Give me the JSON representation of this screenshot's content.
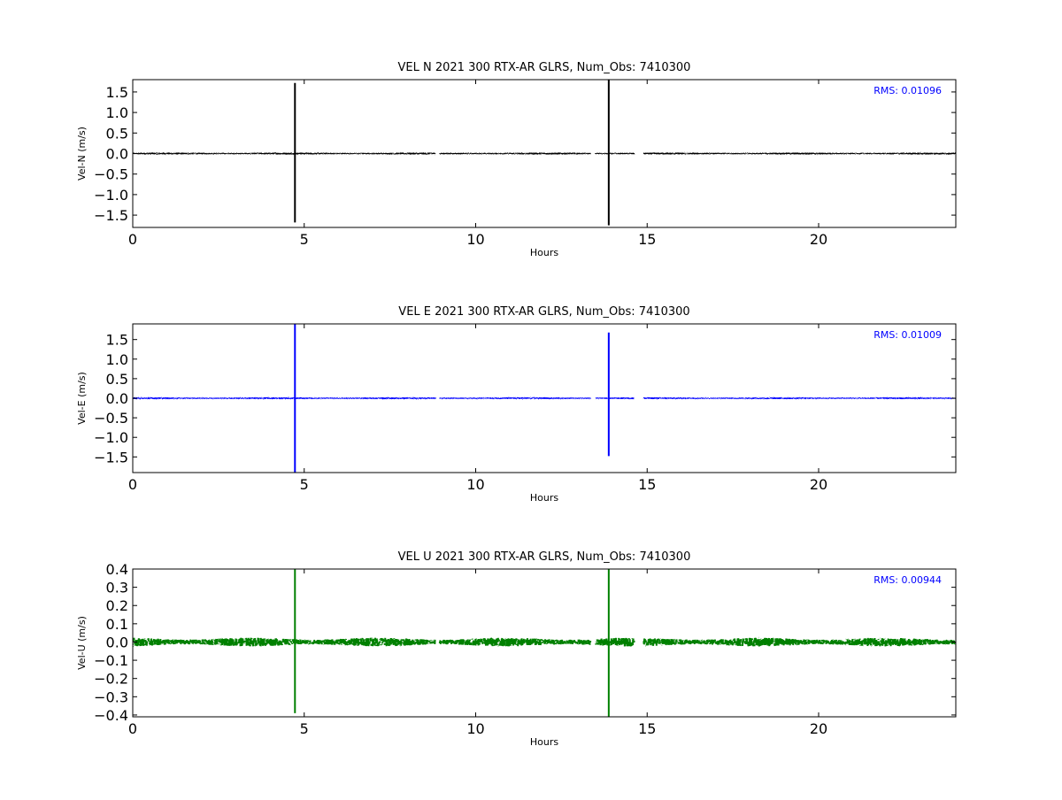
{
  "chart_data": [
    {
      "type": "line",
      "title": "VEL N 2021 300 RTX-AR  GLRS, Num_Obs: 7410300",
      "xlabel": "Hours",
      "ylabel": "Vel-N (m/s)",
      "xlim": [
        0,
        24
      ],
      "ylim": [
        -1.8,
        1.8
      ],
      "xticks": [
        0,
        5,
        10,
        15,
        20
      ],
      "yticks": [
        -1.5,
        -1.0,
        -0.5,
        0.0,
        0.5,
        1.0,
        1.5
      ],
      "ytick_labels": [
        "−1.5",
        "−1.0",
        "−0.5",
        "0.0",
        "0.5",
        "1.0",
        "1.5"
      ],
      "color": "#000000",
      "rms_label": "RMS:  0.01096",
      "series": [
        {
          "noise_amplitude": 0.02,
          "segments": [
            [
              0.0,
              8.82
            ],
            [
              8.95,
              13.35
            ],
            [
              13.5,
              14.62
            ],
            [
              14.9,
              24.0
            ]
          ],
          "spikes": [
            [
              4.73,
              -1.68,
              1.72
            ],
            [
              13.88,
              -1.75,
              1.8
            ]
          ]
        }
      ]
    },
    {
      "type": "line",
      "title": "VEL E 2021 300 RTX-AR  GLRS, Num_Obs: 7410300",
      "xlabel": "Hours",
      "ylabel": "Vel-E (m/s)",
      "xlim": [
        0,
        24
      ],
      "ylim": [
        -1.9,
        1.9
      ],
      "xticks": [
        0,
        5,
        10,
        15,
        20
      ],
      "yticks": [
        -1.5,
        -1.0,
        -0.5,
        0.0,
        0.5,
        1.0,
        1.5
      ],
      "ytick_labels": [
        "−1.5",
        "−1.0",
        "−0.5",
        "0.0",
        "0.5",
        "1.0",
        "1.5"
      ],
      "color": "#0000ff",
      "rms_label": "RMS:  0.01009",
      "series": [
        {
          "noise_amplitude": 0.02,
          "segments": [
            [
              0.0,
              8.82
            ],
            [
              8.95,
              13.35
            ],
            [
              13.5,
              14.62
            ],
            [
              14.9,
              24.0
            ]
          ],
          "spikes": [
            [
              4.73,
              -1.9,
              1.9
            ],
            [
              13.88,
              -1.48,
              1.68
            ]
          ]
        }
      ]
    },
    {
      "type": "line",
      "title": "VEL U 2021 300 RTX-AR  GLRS, Num_Obs: 7410300",
      "xlabel": "Hours",
      "ylabel": "Vel-U (m/s)",
      "xlim": [
        0,
        24
      ],
      "ylim": [
        -0.41,
        0.4
      ],
      "xticks": [
        0,
        5,
        10,
        15,
        20
      ],
      "yticks": [
        -0.4,
        -0.3,
        -0.2,
        -0.1,
        0.0,
        0.1,
        0.2,
        0.3,
        0.4
      ],
      "ytick_labels": [
        "−0.4",
        "−0.3",
        "−0.2",
        "−0.1",
        "0.0",
        "0.1",
        "0.2",
        "0.3",
        "0.4"
      ],
      "color": "#008000",
      "rms_label": "RMS:  0.00944",
      "series": [
        {
          "noise_amplitude": 0.022,
          "segments": [
            [
              0.0,
              8.82
            ],
            [
              8.95,
              13.35
            ],
            [
              13.5,
              14.62
            ],
            [
              14.9,
              24.0
            ]
          ],
          "spikes": [
            [
              4.73,
              -0.39,
              0.4
            ],
            [
              13.88,
              -0.41,
              0.4
            ]
          ]
        }
      ]
    }
  ]
}
